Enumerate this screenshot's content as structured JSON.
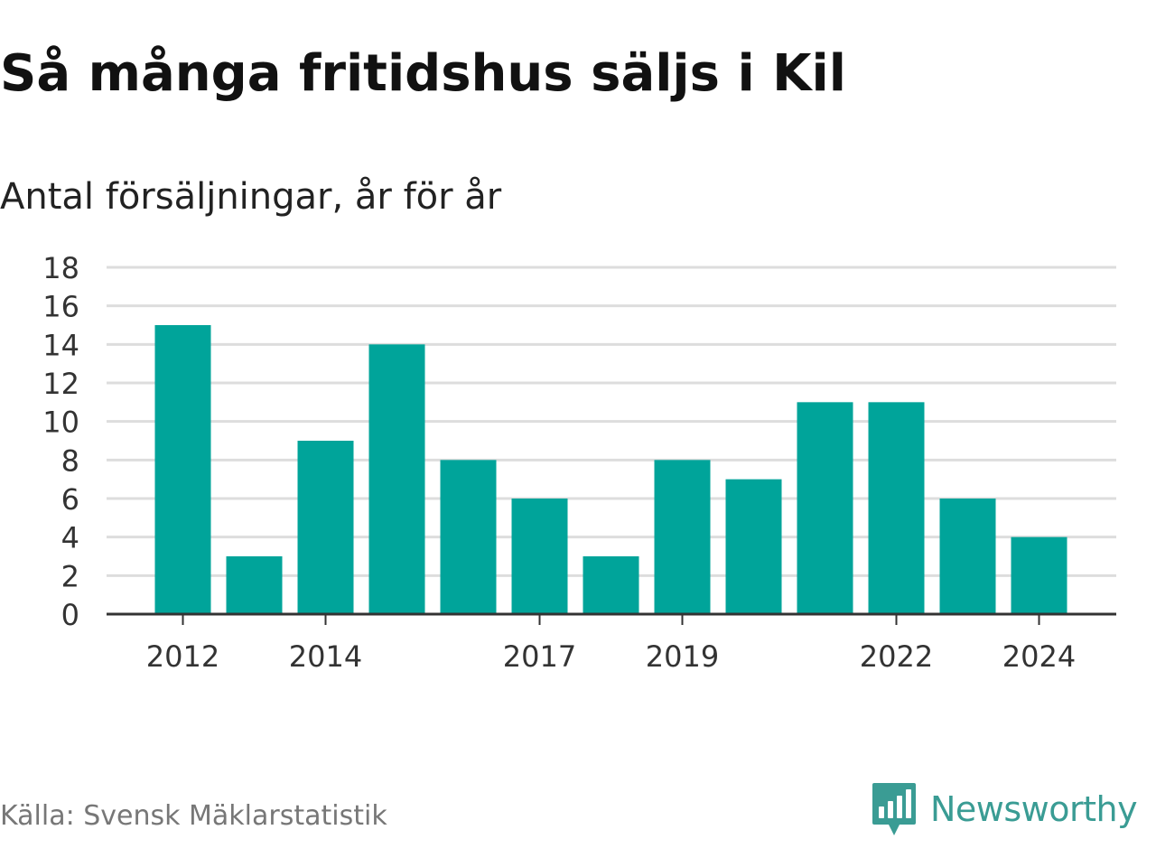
{
  "title": "Så många fritidshus säljs i Kil",
  "subtitle": "Antal försäljningar, år för år",
  "source": "Källa: Svensk Mäklarstatistik",
  "brand": {
    "name": "Newsworthy",
    "icon": "newsworthy-logo-icon",
    "color": "#3a9c94"
  },
  "chart_data": {
    "type": "bar",
    "categories": [
      "2012",
      "2013",
      "2014",
      "2015",
      "2016",
      "2017",
      "2018",
      "2019",
      "2020",
      "2021",
      "2022",
      "2023",
      "2024"
    ],
    "values": [
      15,
      3,
      9,
      14,
      8,
      6,
      3,
      8,
      7,
      11,
      11,
      6,
      4
    ],
    "x_tick_labels": [
      "2012",
      "2014",
      "2017",
      "2019",
      "2022",
      "2024"
    ],
    "y_ticks": [
      0,
      2,
      4,
      6,
      8,
      10,
      12,
      14,
      16,
      18
    ],
    "ylim": [
      0,
      18
    ],
    "xlabel": "",
    "ylabel": "",
    "grid": true,
    "legend": "none",
    "colors": {
      "bar": "#00a49a",
      "grid": "#dddddd",
      "axis": "#333333",
      "tick_text": "#333333"
    }
  }
}
